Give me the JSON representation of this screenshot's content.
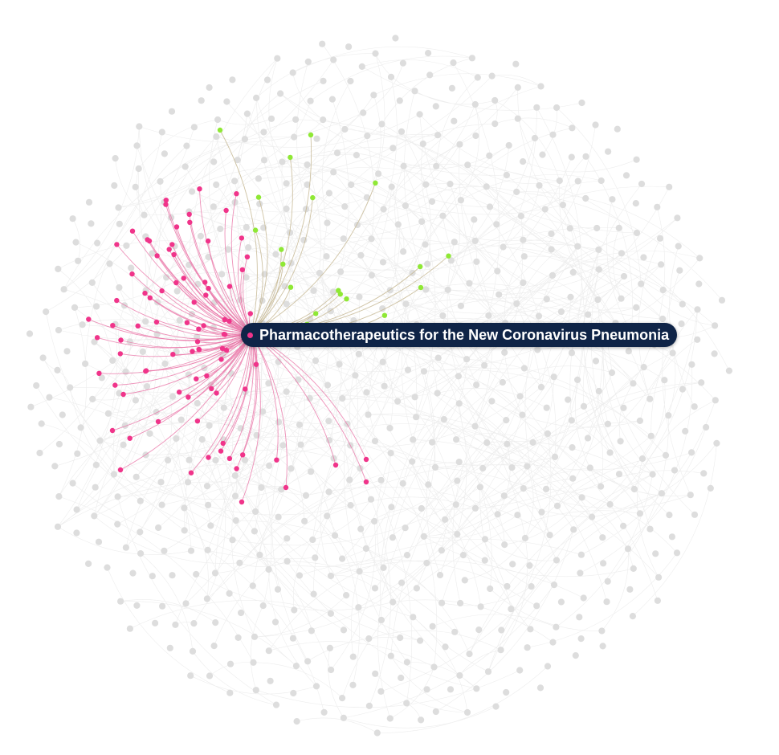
{
  "tooltip": {
    "label": "Pharmacotherapeutics for the New Coronavirus Pneumonia"
  },
  "colors": {
    "background": "#ffffff",
    "inactive_node": "#dddddd",
    "inactive_edge": "#d6d6d6",
    "highlight_node_pink": "#f0348a",
    "highlight_edge_pink": "#ea75a8",
    "highlight_node_green": "#8fe835",
    "highlight_edge_green": "#c7b894",
    "tooltip_bg": "#0f2447"
  },
  "graph": {
    "type": "force-directed network",
    "focus_node": "Pharmacotherapeutics for the New Coronavirus Pneumonia",
    "pink_neighbor_count": 78,
    "green_neighbor_count": 16,
    "background_node_count": 720
  }
}
